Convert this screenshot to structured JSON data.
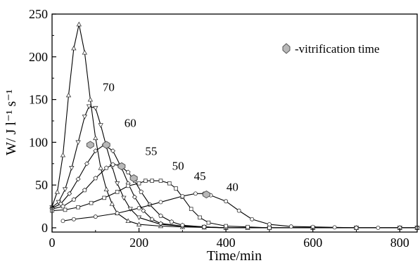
{
  "chart_data": {
    "type": "line",
    "title": "",
    "xlabel": "Time/min",
    "ylabel": "W/ J l⁻¹ s⁻¹",
    "xlim": [
      0,
      840
    ],
    "ylim": [
      -5,
      250
    ],
    "x_ticks": [
      0,
      200,
      400,
      600,
      800
    ],
    "y_ticks": [
      0,
      50,
      100,
      150,
      200,
      250
    ],
    "x_tick_labels": [
      "0",
      "200",
      "400",
      "600",
      "800"
    ],
    "y_tick_labels": [
      "0",
      "50",
      "100",
      "150",
      "200",
      "250"
    ],
    "legend": {
      "label": "-vitrification time",
      "marker": "grey hexagon",
      "placement": "top-right"
    },
    "series": [
      {
        "name": "70",
        "marker": "triangle",
        "x": [
          0,
          12,
          25,
          38,
          50,
          62,
          75,
          88,
          100,
          112,
          125,
          138,
          150,
          175,
          200,
          250,
          300,
          350,
          400,
          450,
          500,
          600,
          700,
          800,
          840
        ],
        "y": [
          25,
          42,
          85,
          155,
          210,
          238,
          205,
          150,
          105,
          70,
          45,
          28,
          17,
          8,
          4,
          2,
          1,
          0.5,
          0,
          0,
          0,
          0,
          0,
          0,
          0
        ],
        "vitrification": null
      },
      {
        "name": "60",
        "marker": "inverted triangle",
        "x": [
          0,
          15,
          30,
          45,
          60,
          75,
          85,
          100,
          112,
          125,
          138,
          150,
          165,
          180,
          200,
          250,
          300,
          350,
          400,
          500,
          600,
          700,
          800,
          840
        ],
        "y": [
          24,
          30,
          45,
          70,
          100,
          130,
          142,
          140,
          120,
          95,
          72,
          52,
          35,
          22,
          12,
          4,
          2,
          1,
          0,
          0,
          0,
          0,
          0,
          0
        ],
        "vitrification": [
          88,
          97
        ]
      },
      {
        "name": "55",
        "marker": "diamond",
        "x": [
          0,
          20,
          40,
          60,
          80,
          100,
          120,
          140,
          160,
          175,
          190,
          210,
          230,
          250,
          300,
          350,
          400,
          500,
          600,
          700,
          800,
          840
        ],
        "y": [
          23,
          28,
          40,
          57,
          75,
          90,
          97,
          90,
          70,
          52,
          36,
          20,
          10,
          5,
          2,
          1,
          0,
          0,
          0,
          0,
          0,
          0
        ],
        "vitrification": [
          125,
          97
        ]
      },
      {
        "name": "50",
        "marker": "pentagon",
        "x": [
          0,
          25,
          50,
          75,
          100,
          125,
          140,
          155,
          175,
          190,
          205,
          225,
          250,
          275,
          300,
          350,
          400,
          500,
          600,
          700,
          800,
          840
        ],
        "y": [
          22,
          25,
          33,
          44,
          58,
          70,
          74,
          73,
          65,
          55,
          42,
          27,
          14,
          7,
          3,
          1,
          0,
          0,
          0,
          0,
          0,
          0
        ],
        "vitrification": [
          160,
          72
        ]
      },
      {
        "name": "45",
        "marker": "square",
        "x": [
          0,
          30,
          60,
          90,
          120,
          150,
          175,
          200,
          215,
          230,
          250,
          270,
          285,
          300,
          320,
          340,
          360,
          400,
          450,
          500,
          600,
          700,
          800,
          840
        ],
        "y": [
          20,
          21,
          24,
          29,
          35,
          42,
          49,
          52,
          55,
          55,
          55,
          52,
          46,
          36,
          22,
          12,
          6,
          2,
          1,
          0,
          0,
          0,
          0,
          0
        ],
        "vitrification": [
          188,
          58
        ]
      },
      {
        "name": "40",
        "marker": "circle",
        "x": [
          25,
          50,
          100,
          150,
          200,
          250,
          300,
          330,
          350,
          365,
          400,
          430,
          460,
          500,
          550,
          600,
          650,
          700,
          750,
          800,
          840
        ],
        "y": [
          8,
          10,
          13,
          17,
          23,
          30,
          37,
          40,
          40,
          38,
          31,
          20,
          10,
          4,
          1.5,
          1,
          0.5,
          0,
          0,
          0,
          0
        ],
        "vitrification": [
          355,
          39
        ]
      }
    ]
  }
}
